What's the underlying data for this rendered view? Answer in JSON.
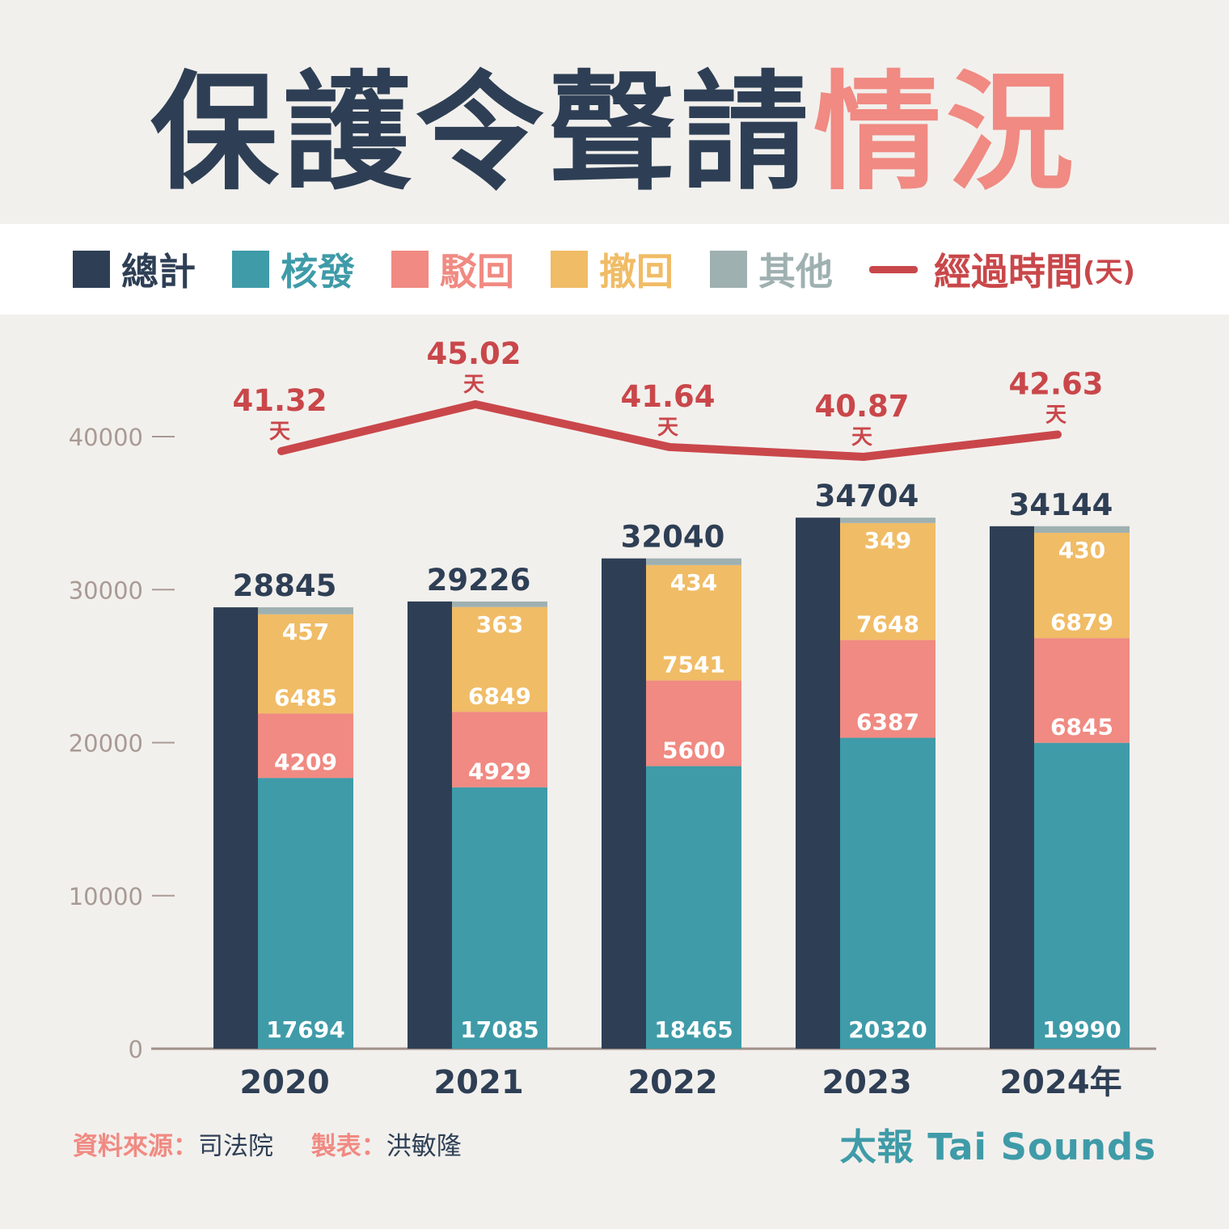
{
  "title": {
    "main": "保護令聲請",
    "accent": "情況"
  },
  "legend": {
    "total": "總計",
    "granted": "核發",
    "rejected": "駁回",
    "withdrawn": "撤回",
    "other": "其他",
    "duration": "經過時間",
    "duration_unit": "(天)"
  },
  "colors": {
    "total": "#2e3f55",
    "granted": "#3f9ba8",
    "rejected": "#f08a82",
    "withdrawn": "#f0bc66",
    "other": "#9fb0b0",
    "duration": "#c9474a",
    "axis_text": "#a99a94"
  },
  "chart_data": {
    "type": "bar",
    "categories": [
      "2020",
      "2021",
      "2022",
      "2023",
      "2024年"
    ],
    "ylim": [
      0,
      40000
    ],
    "yticks": [
      "0",
      "10000",
      "20000",
      "30000",
      "40000"
    ],
    "series": [
      {
        "key": "total",
        "name": "總計",
        "values": [
          28845,
          29226,
          32040,
          34704,
          34144
        ]
      },
      {
        "key": "granted",
        "name": "核發",
        "values": [
          17694,
          17085,
          18465,
          20320,
          19990
        ]
      },
      {
        "key": "rejected",
        "name": "駁回",
        "values": [
          4209,
          4929,
          5600,
          6387,
          6845
        ]
      },
      {
        "key": "withdrawn",
        "name": "撤回",
        "values": [
          6485,
          6849,
          7541,
          7648,
          6879
        ]
      },
      {
        "key": "other",
        "name": "其他",
        "values": [
          457,
          363,
          434,
          349,
          430
        ]
      }
    ],
    "line": {
      "name": "經過時間",
      "unit": "天",
      "values": [
        41.32,
        45.02,
        41.64,
        40.87,
        42.63
      ],
      "labels": [
        "41.32",
        "45.02",
        "41.64",
        "40.87",
        "42.63"
      ]
    }
  },
  "footer": {
    "source_label": "資料來源：",
    "source_value": "司法院",
    "maker_label": "製表：",
    "maker_value": "洪敏隆",
    "brand": "太報 Tai Sounds"
  }
}
